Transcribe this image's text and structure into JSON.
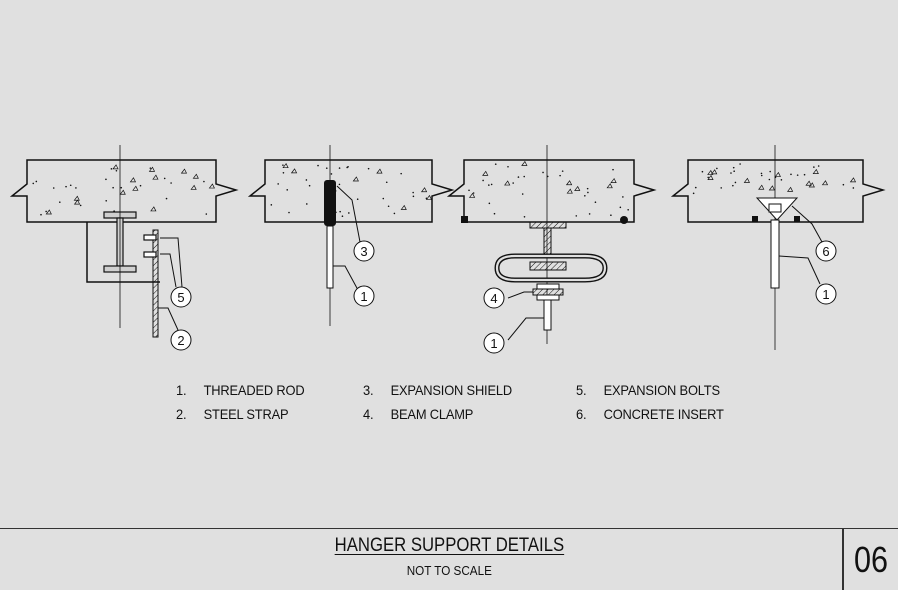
{
  "legend": [
    {
      "num": "1.",
      "label": "THREADED ROD"
    },
    {
      "num": "2.",
      "label": "STEEL STRAP"
    },
    {
      "num": "3.",
      "label": "EXPANSION SHIELD"
    },
    {
      "num": "4.",
      "label": "BEAM CLAMP"
    },
    {
      "num": "5.",
      "label": "EXPANSION BOLTS"
    },
    {
      "num": "6.",
      "label": "CONCRETE INSERT"
    }
  ],
  "callouts": {
    "detail_a": [
      "5",
      "2"
    ],
    "detail_b": [
      "3",
      "1"
    ],
    "detail_c": [
      "4",
      "1"
    ],
    "detail_d": [
      "6",
      "1"
    ]
  },
  "title_block": {
    "title": "HANGER SUPPORT DETAILS",
    "subtitle": "NOT TO SCALE",
    "sheet_number": "06"
  },
  "colors": {
    "background": "#e0e0e0",
    "line": "#111111"
  }
}
